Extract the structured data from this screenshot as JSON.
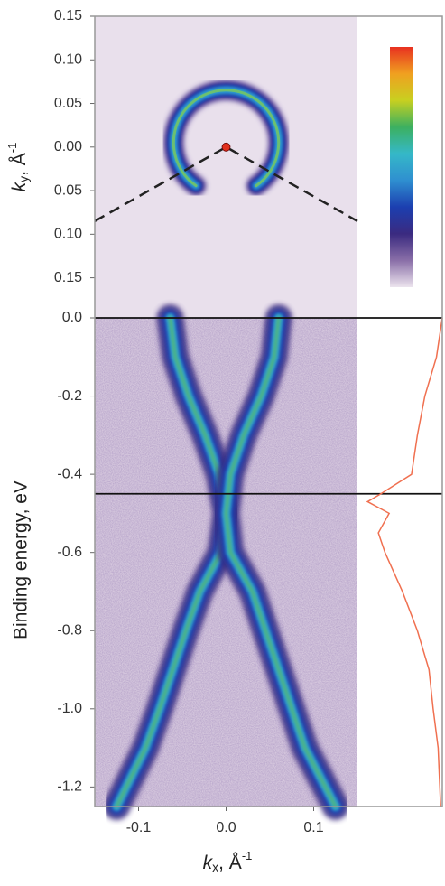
{
  "chart_data": [
    {
      "type": "heatmap",
      "ylabel": {
        "main": "k",
        "sub": "y",
        "unit": ", Å",
        "sup": "-1"
      },
      "xlim": [
        -0.15,
        0.15
      ],
      "ylim": [
        -0.196,
        0.15
      ],
      "yticks": [
        {
          "value": 0.15,
          "label": "0.15"
        },
        {
          "value": 0.1,
          "label": "0.10"
        },
        {
          "value": 0.05,
          "label": "0.05"
        },
        {
          "value": 0,
          "label": "0.00"
        },
        {
          "value": -0.05,
          "label": "0.05"
        },
        {
          "value": -0.1,
          "label": "0.10"
        },
        {
          "value": -0.15,
          "label": "0.15"
        }
      ],
      "fermi_surface": {
        "kx": 0,
        "ky": 0.005,
        "radius": 0.06
      },
      "gamma_point": {
        "kx": 0,
        "ky": 0,
        "color": "#e0301e"
      },
      "cut_lines": {
        "kx": [
          -0.15,
          0,
          0.15
        ],
        "ky": [
          -0.085,
          0,
          -0.085
        ]
      },
      "colorbar": {
        "colors": [
          "#ece4ee",
          "#8a6fa8",
          "#3a2a80",
          "#1c3fb0",
          "#2f8fd0",
          "#35b8c8",
          "#3cb060",
          "#c8d020",
          "#f0a020",
          "#e83020"
        ]
      }
    },
    {
      "type": "heatmap",
      "ylabel": "Binding energy, eV",
      "xlabel": {
        "main": "k",
        "sub": "x",
        "unit": ", Å",
        "sup": "-1"
      },
      "xlim": [
        -0.15,
        0.15
      ],
      "ylim": [
        -1.25,
        0
      ],
      "yticks": [
        {
          "value": 0,
          "label": "0.0"
        },
        -0.2,
        -0.4,
        -0.6,
        -0.8,
        {
          "value": -1,
          "label": "-1.0"
        },
        -1.2
      ],
      "xticks": [
        -0.1,
        {
          "value": 0,
          "label": "0.0"
        },
        0.1
      ],
      "bands": {
        "energy": [
          0,
          -0.1,
          -0.2,
          -0.3,
          -0.4,
          -0.5,
          -0.6,
          -0.7,
          -0.8,
          -0.9,
          -1.0,
          -1.1,
          -1.25
        ],
        "kx_left": [
          -0.064,
          -0.058,
          -0.043,
          -0.024,
          -0.008,
          0,
          -0.006,
          -0.03,
          -0.046,
          -0.061,
          -0.076,
          -0.092,
          -0.125
        ],
        "kx_right": [
          0.06,
          0.055,
          0.04,
          0.02,
          0.005,
          0,
          0.005,
          0.03,
          0.045,
          0.06,
          0.075,
          0.09,
          0.125
        ]
      },
      "hlines": [
        0,
        -0.45
      ],
      "edc": {
        "energy": [
          0,
          -0.1,
          -0.2,
          -0.3,
          -0.4,
          -0.45,
          -0.47,
          -0.5,
          -0.55,
          -0.6,
          -0.7,
          -0.8,
          -0.9,
          -1.0,
          -1.1,
          -1.2,
          -1.25
        ],
        "intensity": [
          0,
          0.07,
          0.21,
          0.3,
          0.37,
          0.74,
          0.9,
          0.64,
          0.77,
          0.69,
          0.48,
          0.3,
          0.16,
          0.11,
          0.05,
          0.03,
          0.02
        ],
        "color": "#f07050"
      }
    }
  ]
}
